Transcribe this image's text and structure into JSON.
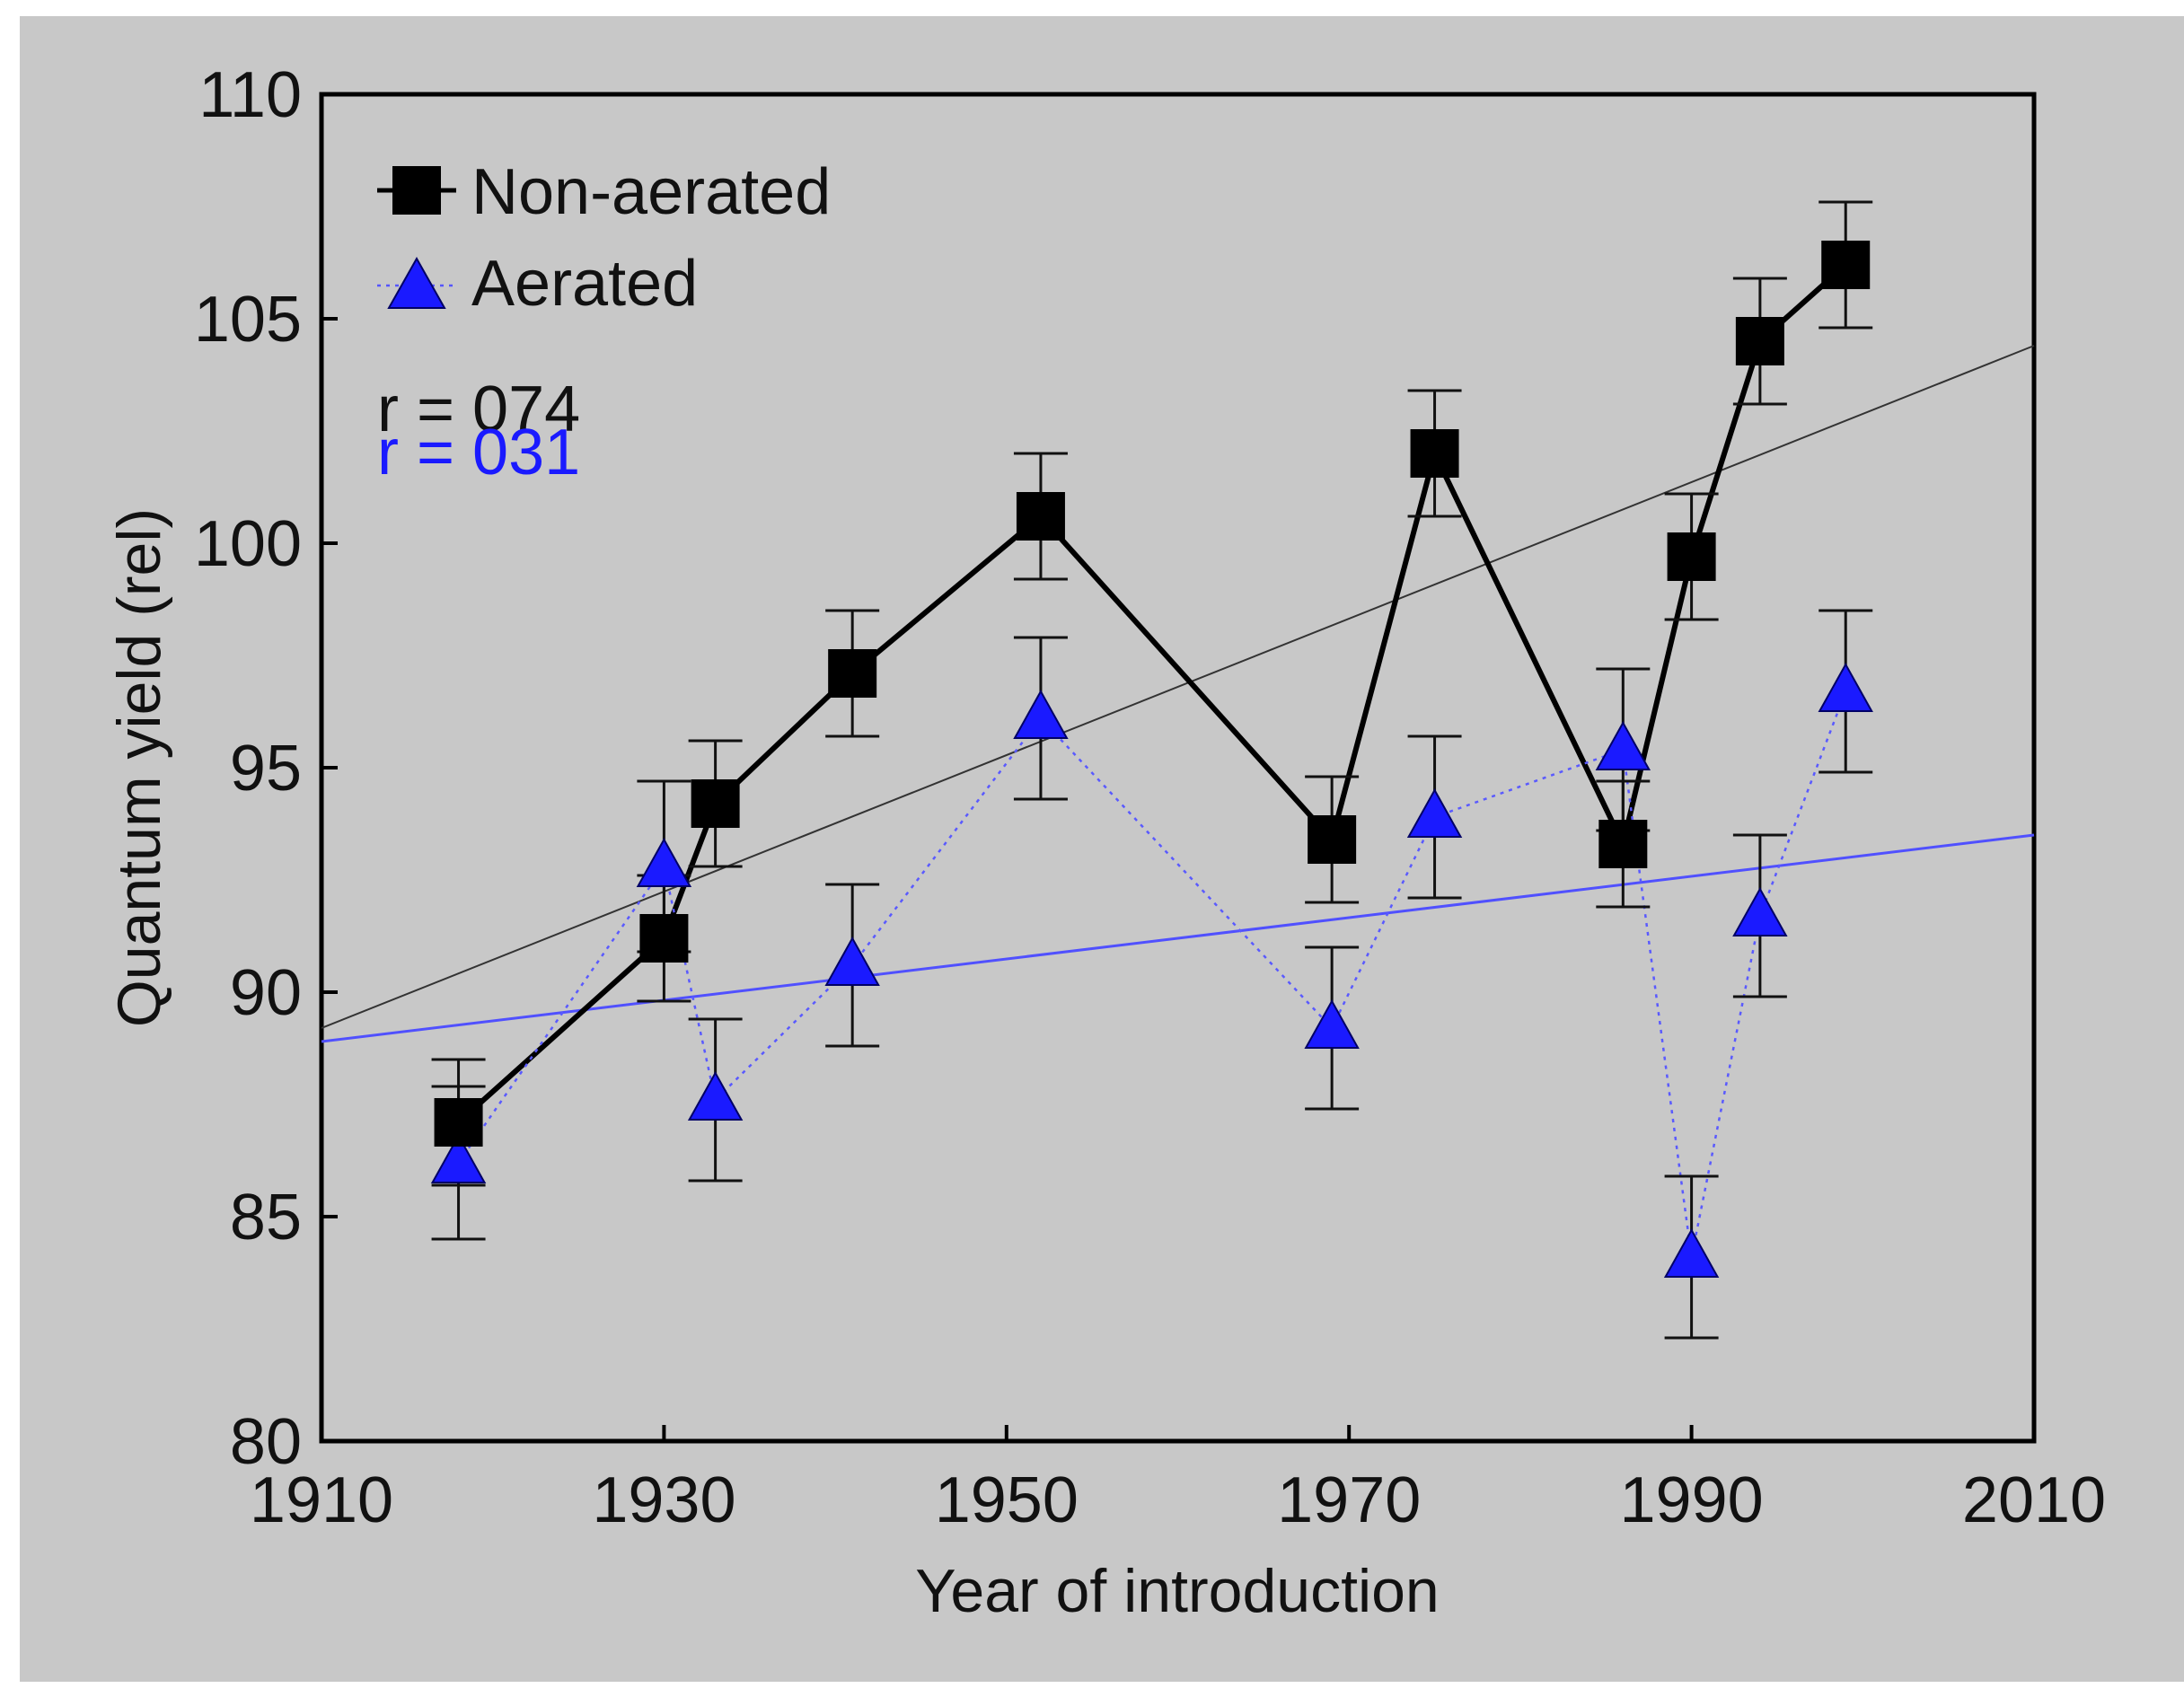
{
  "chart_data": {
    "type": "scatter",
    "title": "",
    "xlabel": "Year of introduction",
    "ylabel": "Quantum yield (rel)",
    "xlim": [
      1910,
      2010
    ],
    "ylim": [
      80,
      110
    ],
    "xticks": [
      1910,
      1930,
      1950,
      1970,
      1990,
      2010
    ],
    "yticks": [
      80,
      85,
      90,
      95,
      100,
      105,
      110
    ],
    "grid": false,
    "legend_position": "top-left",
    "series": [
      {
        "name": "Non-aerated",
        "marker": "square",
        "color": "#000000",
        "line_style": "solid",
        "x": [
          1918,
          1930,
          1933,
          1941,
          1952,
          1969,
          1975,
          1986,
          1990,
          1994,
          1999
        ],
        "y": [
          87.1,
          91.2,
          94.2,
          97.1,
          100.6,
          93.4,
          102.0,
          93.3,
          99.7,
          104.5,
          106.2
        ],
        "error": [
          1.4,
          1.4,
          1.4,
          1.4,
          1.4,
          1.4,
          1.4,
          1.4,
          1.4,
          1.4,
          1.4
        ],
        "trend": [
          [
            1910,
            89.2
          ],
          [
            2010,
            104.4
          ]
        ],
        "r_label": "r = 074"
      },
      {
        "name": "Aerated",
        "marker": "triangle",
        "color": "#1a1aff",
        "line_style": "dotted",
        "x": [
          1918,
          1930,
          1933,
          1941,
          1952,
          1969,
          1975,
          1986,
          1990,
          1994,
          1999
        ],
        "y": [
          86.2,
          92.8,
          87.6,
          90.6,
          96.1,
          89.2,
          93.9,
          95.4,
          84.1,
          91.7,
          96.7
        ],
        "error": [
          1.7,
          1.9,
          1.8,
          1.8,
          1.8,
          1.8,
          1.8,
          1.8,
          1.8,
          1.8,
          1.8
        ],
        "trend": [
          [
            1910,
            88.9
          ],
          [
            2010,
            93.5
          ]
        ],
        "r_label": "r = 031"
      }
    ]
  }
}
